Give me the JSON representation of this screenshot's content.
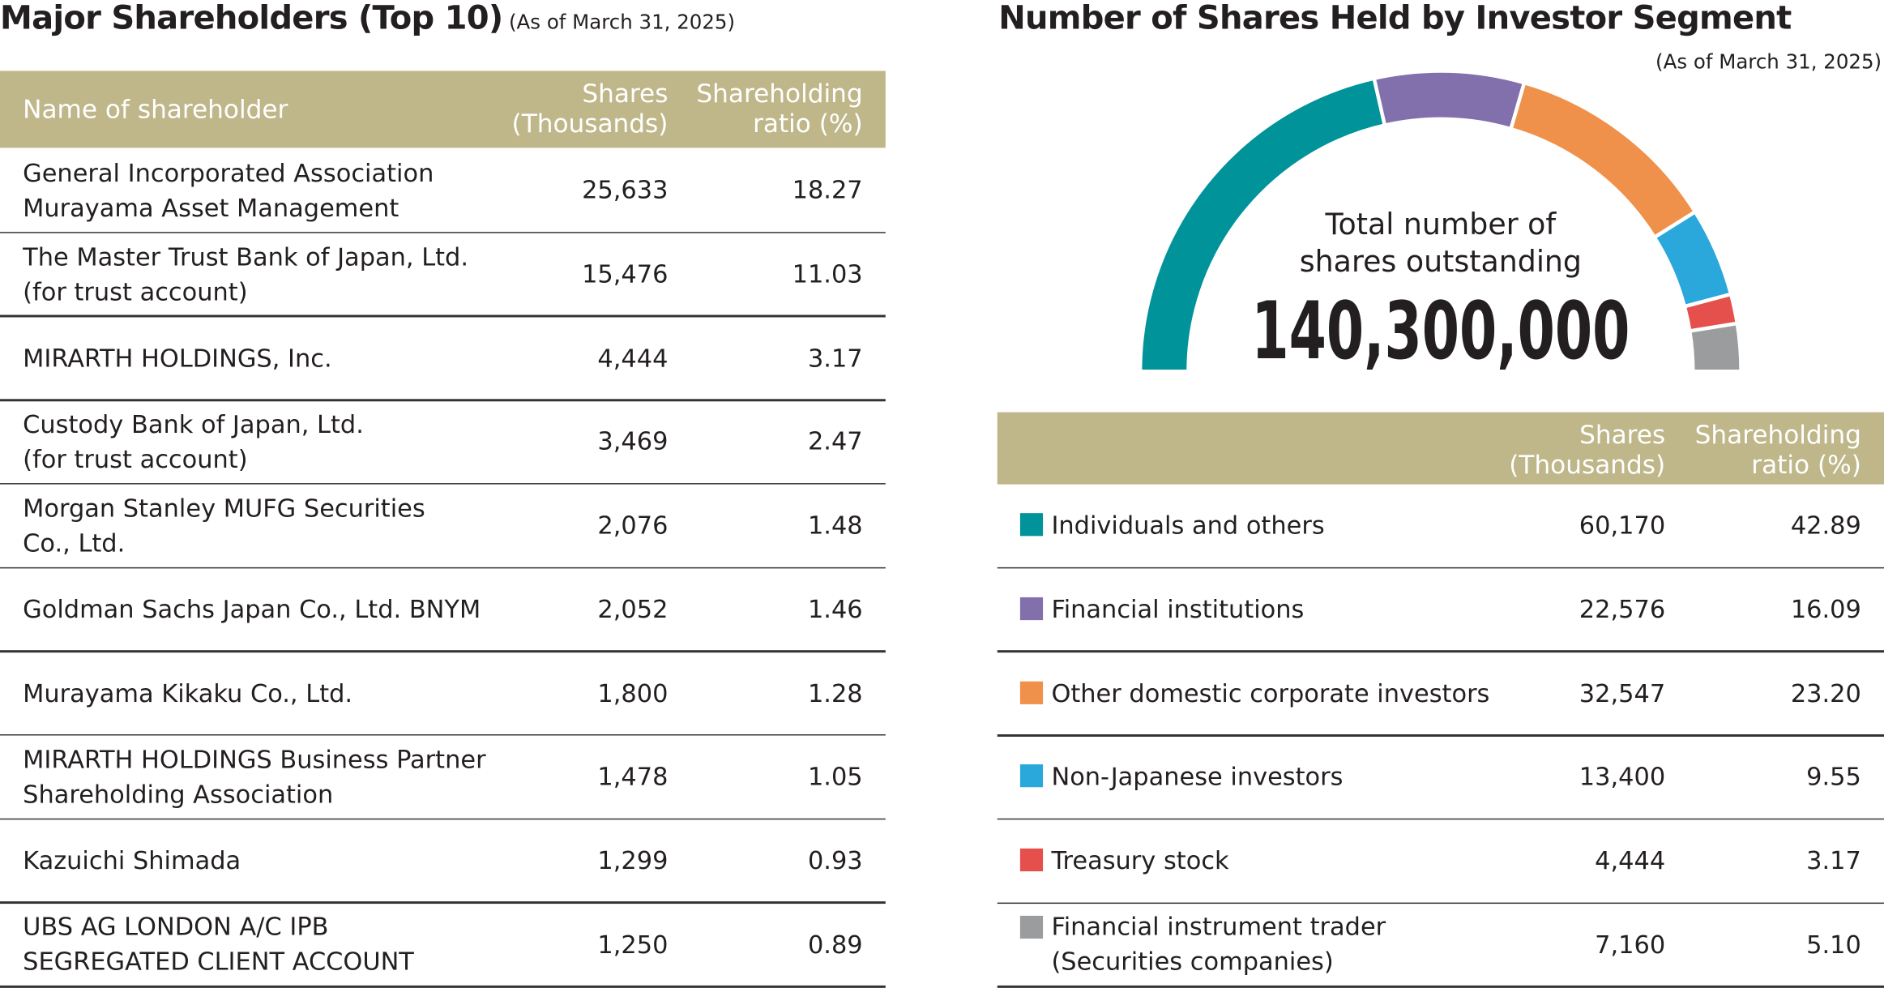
{
  "left_table": {
    "title": "Major Shareholders (Top 10)",
    "subtitle": "(As of March 31, 2025)",
    "headers": [
      "Name of shareholder",
      "Shares\n(Thousands)",
      "Shareholding\nratio (%)"
    ],
    "rows": [
      [
        "General Incorporated Association\nMurayama Asset Management",
        "25,633",
        "18.27"
      ],
      [
        "The Master Trust Bank of Japan, Ltd.\n(for trust account)",
        "15,476",
        "11.03"
      ],
      [
        "MIRARTH HOLDINGS, Inc.",
        "4,444",
        "3.17"
      ],
      [
        "Custody Bank of Japan, Ltd.\n(for trust account)",
        "3,469",
        "2.47"
      ],
      [
        "Morgan Stanley MUFG Securities\nCo., Ltd.",
        "2,076",
        "1.48"
      ],
      [
        "Goldman Sachs Japan Co., Ltd. BNYM",
        "2,052",
        "1.46"
      ],
      [
        "Murayama Kikaku Co., Ltd.",
        "1,800",
        "1.28"
      ],
      [
        "MIRARTH HOLDINGS Business Partner\nShareholding Association",
        "1,478",
        "1.05"
      ],
      [
        "Kazuichi Shimada",
        "1,299",
        "0.93"
      ],
      [
        "UBS AG LONDON A/C IPB\nSEGREGATED CLIENT ACCOUNT",
        "1,250",
        "0.89"
      ]
    ]
  },
  "chart_data": {
    "type": "semi-donut",
    "title": "Number of Shares Held by Investor Segment",
    "subtitle": "(As of March 31, 2025)",
    "center_label": "Total number of\nshares outstanding",
    "total": {
      "value": 140300000,
      "label": "140,300,000"
    },
    "shares_header": "Shares\n(Thousands)",
    "ratio_header": "Shareholding\nratio (%)",
    "categories": [
      "Individuals and others",
      "Financial institutions",
      "Other domestic corporate investors",
      "Non-Japanese investors",
      "Treasury stock",
      "Financial instrument trader\n(Securities companies)"
    ],
    "values": [
      60170,
      22576,
      32547,
      13400,
      4444,
      7160
    ],
    "value_labels": [
      "60,170",
      "22,576",
      "32,547",
      "13,400",
      "4,444",
      "7,160"
    ],
    "ratios": [
      42.89,
      16.09,
      23.2,
      9.55,
      3.17,
      5.1
    ],
    "ratio_labels": [
      "42.89",
      "16.09",
      "23.20",
      "9.55",
      "3.17",
      "5.10"
    ],
    "colors": [
      "#00939a",
      "#8270ad",
      "#f0914b",
      "#2aa8dc",
      "#e6504c",
      "#9a9c9e"
    ]
  }
}
